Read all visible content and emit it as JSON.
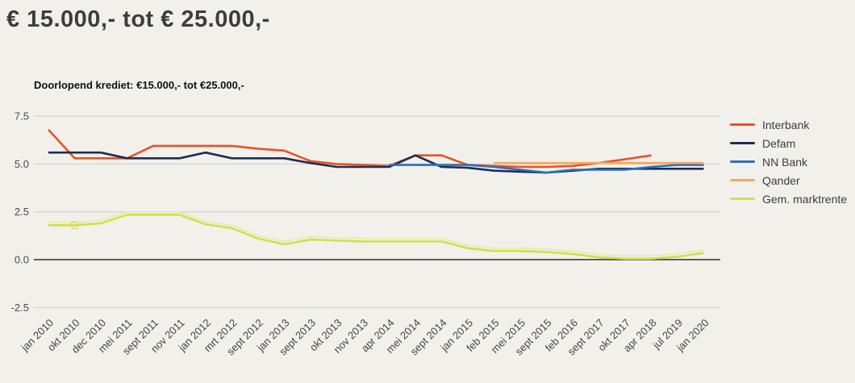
{
  "page": {
    "title": "€ 15.000,- tot € 25.000,-",
    "background_color": "#f2f0ea"
  },
  "chart_data": {
    "type": "line",
    "title": "Doorlopend krediet: €15.000,- tot €25.000,-",
    "categories": [
      "jan 2010",
      "okt 2010",
      "dec 2010",
      "mei 2011",
      "sept 2011",
      "nov 2011",
      "jan 2012",
      "mrt 2012",
      "sept 2012",
      "jan 2013",
      "sept 2013",
      "okt 2013",
      "nov 2013",
      "apr 2014",
      "mei 2014",
      "sept 2014",
      "jan 2015",
      "feb 2015",
      "mei 2015",
      "sept 2015",
      "feb 2016",
      "sept 2017",
      "okt 2017",
      "apr 2018",
      "jul 2019",
      "jan 2020"
    ],
    "yticks": [
      7.5,
      5.0,
      2.5,
      0.0,
      -2.5
    ],
    "ylim": [
      -2.5,
      7.5
    ],
    "grid": true,
    "legend_position": "right",
    "series": [
      {
        "name": "Interbank",
        "color": "#ea5224",
        "values": [
          6.8,
          5.3,
          5.3,
          5.3,
          5.95,
          5.95,
          5.95,
          5.95,
          5.8,
          5.7,
          5.15,
          5.0,
          4.95,
          4.9,
          5.45,
          5.45,
          4.95,
          4.9,
          4.85,
          4.85,
          4.9,
          5.05,
          5.25,
          5.45,
          null,
          null
        ]
      },
      {
        "name": "Defam",
        "color": "#202c55",
        "values": [
          5.6,
          5.6,
          5.6,
          5.3,
          5.3,
          5.3,
          5.6,
          5.3,
          5.3,
          5.3,
          5.05,
          4.85,
          4.85,
          4.85,
          5.45,
          4.85,
          4.8,
          4.65,
          4.6,
          4.55,
          4.65,
          4.75,
          4.75,
          4.75,
          4.75,
          4.75
        ]
      },
      {
        "name": "NN Bank",
        "color": "#2a70bd",
        "values": [
          null,
          null,
          null,
          null,
          null,
          null,
          null,
          null,
          null,
          null,
          null,
          null,
          null,
          4.95,
          4.95,
          4.95,
          4.95,
          4.85,
          4.7,
          4.55,
          4.7,
          4.7,
          4.7,
          4.85,
          4.95,
          4.95
        ]
      },
      {
        "name": "Qander",
        "color": "#f5a95e",
        "values": [
          null,
          null,
          null,
          null,
          null,
          null,
          null,
          null,
          null,
          null,
          null,
          null,
          null,
          null,
          null,
          null,
          null,
          5.05,
          5.05,
          5.05,
          5.05,
          5.05,
          5.05,
          5.05,
          5.05,
          5.05
        ]
      },
      {
        "name": "Gem. marktrente",
        "color": "#d5dc4e",
        "echo": true,
        "marker_index": 1,
        "values": [
          1.8,
          1.8,
          1.9,
          2.35,
          2.35,
          2.35,
          1.85,
          1.65,
          1.1,
          0.8,
          1.05,
          1.0,
          0.95,
          0.95,
          0.95,
          0.95,
          0.6,
          0.45,
          0.45,
          0.4,
          0.3,
          0.12,
          0.05,
          0.05,
          0.15,
          0.35
        ]
      }
    ]
  }
}
